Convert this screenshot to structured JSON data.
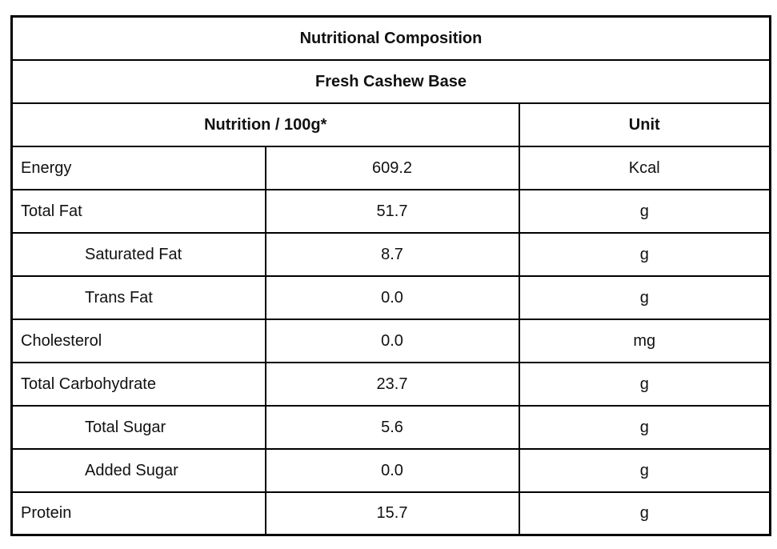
{
  "table": {
    "title": "Nutritional Composition",
    "subtitle": "Fresh Cashew Base",
    "header": {
      "nutrition_col": "Nutrition / 100g*",
      "unit_col": "Unit"
    },
    "rows": [
      {
        "label": "Energy",
        "value": "609.2",
        "unit": "Kcal",
        "indent": false
      },
      {
        "label": "Total Fat",
        "value": "51.7",
        "unit": "g",
        "indent": false
      },
      {
        "label": "Saturated Fat",
        "value": "8.7",
        "unit": "g",
        "indent": true
      },
      {
        "label": "Trans Fat",
        "value": "0.0",
        "unit": "g",
        "indent": true
      },
      {
        "label": "Cholesterol",
        "value": "0.0",
        "unit": "mg",
        "indent": false
      },
      {
        "label": "Total Carbohydrate",
        "value": "23.7",
        "unit": "g",
        "indent": false
      },
      {
        "label": "Total Sugar",
        "value": "5.6",
        "unit": "g",
        "indent": true
      },
      {
        "label": "Added Sugar",
        "value": "0.0",
        "unit": "g",
        "indent": true
      },
      {
        "label": "Protein",
        "value": "15.7",
        "unit": "g",
        "indent": false
      }
    ],
    "colors": {
      "border": "#000000",
      "text": "#111111",
      "background": "#ffffff"
    }
  }
}
